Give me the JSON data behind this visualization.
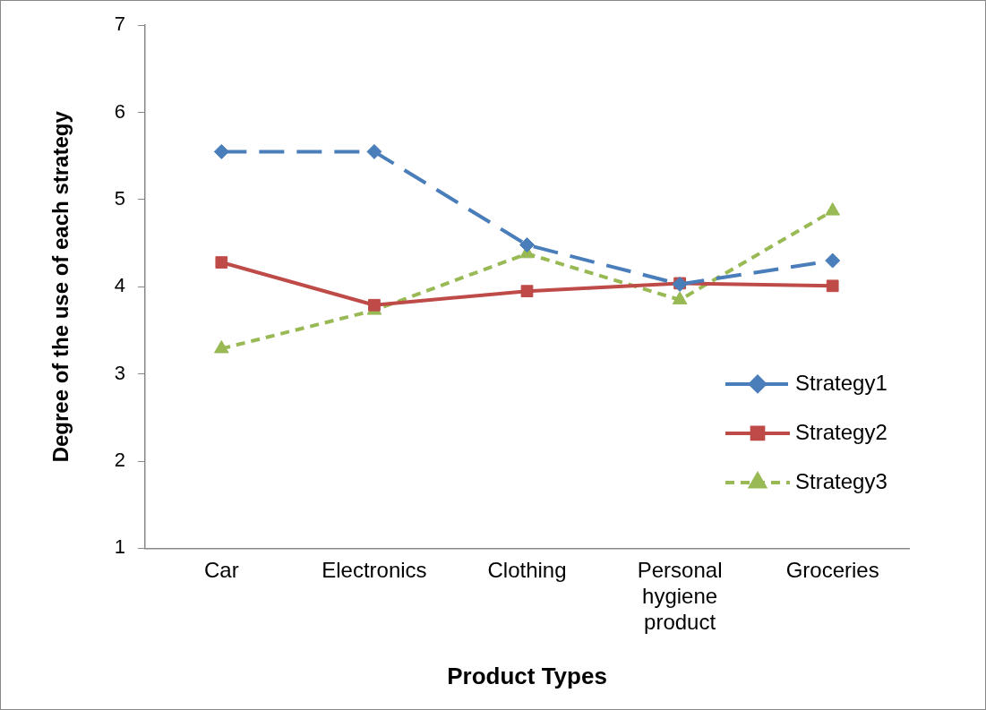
{
  "chart_data": {
    "type": "line",
    "xlabel": "Product Types",
    "ylabel": "Degree of the use of each strategy",
    "categories": [
      "Car",
      "Electronics",
      "Clothing",
      "Personal hygiene product",
      "Groceries"
    ],
    "series": [
      {
        "name": "Strategy1",
        "color": "#4a7ebb",
        "values": [
          5.55,
          5.55,
          4.48,
          4.03,
          4.3
        ],
        "marker": "diamond",
        "line_style": "dashed"
      },
      {
        "name": "Strategy2",
        "color": "#be4b48",
        "values": [
          4.28,
          3.79,
          3.95,
          4.04,
          4.01
        ],
        "marker": "square",
        "line_style": "solid"
      },
      {
        "name": "Strategy3",
        "color": "#98b954",
        "values": [
          3.29,
          3.73,
          4.38,
          3.85,
          4.87
        ],
        "marker": "triangle",
        "line_style": "dotted"
      }
    ],
    "ylim": [
      1,
      7
    ],
    "yticks": [
      1,
      2,
      3,
      4,
      5,
      6,
      7
    ],
    "grid": false,
    "legend": "right"
  }
}
